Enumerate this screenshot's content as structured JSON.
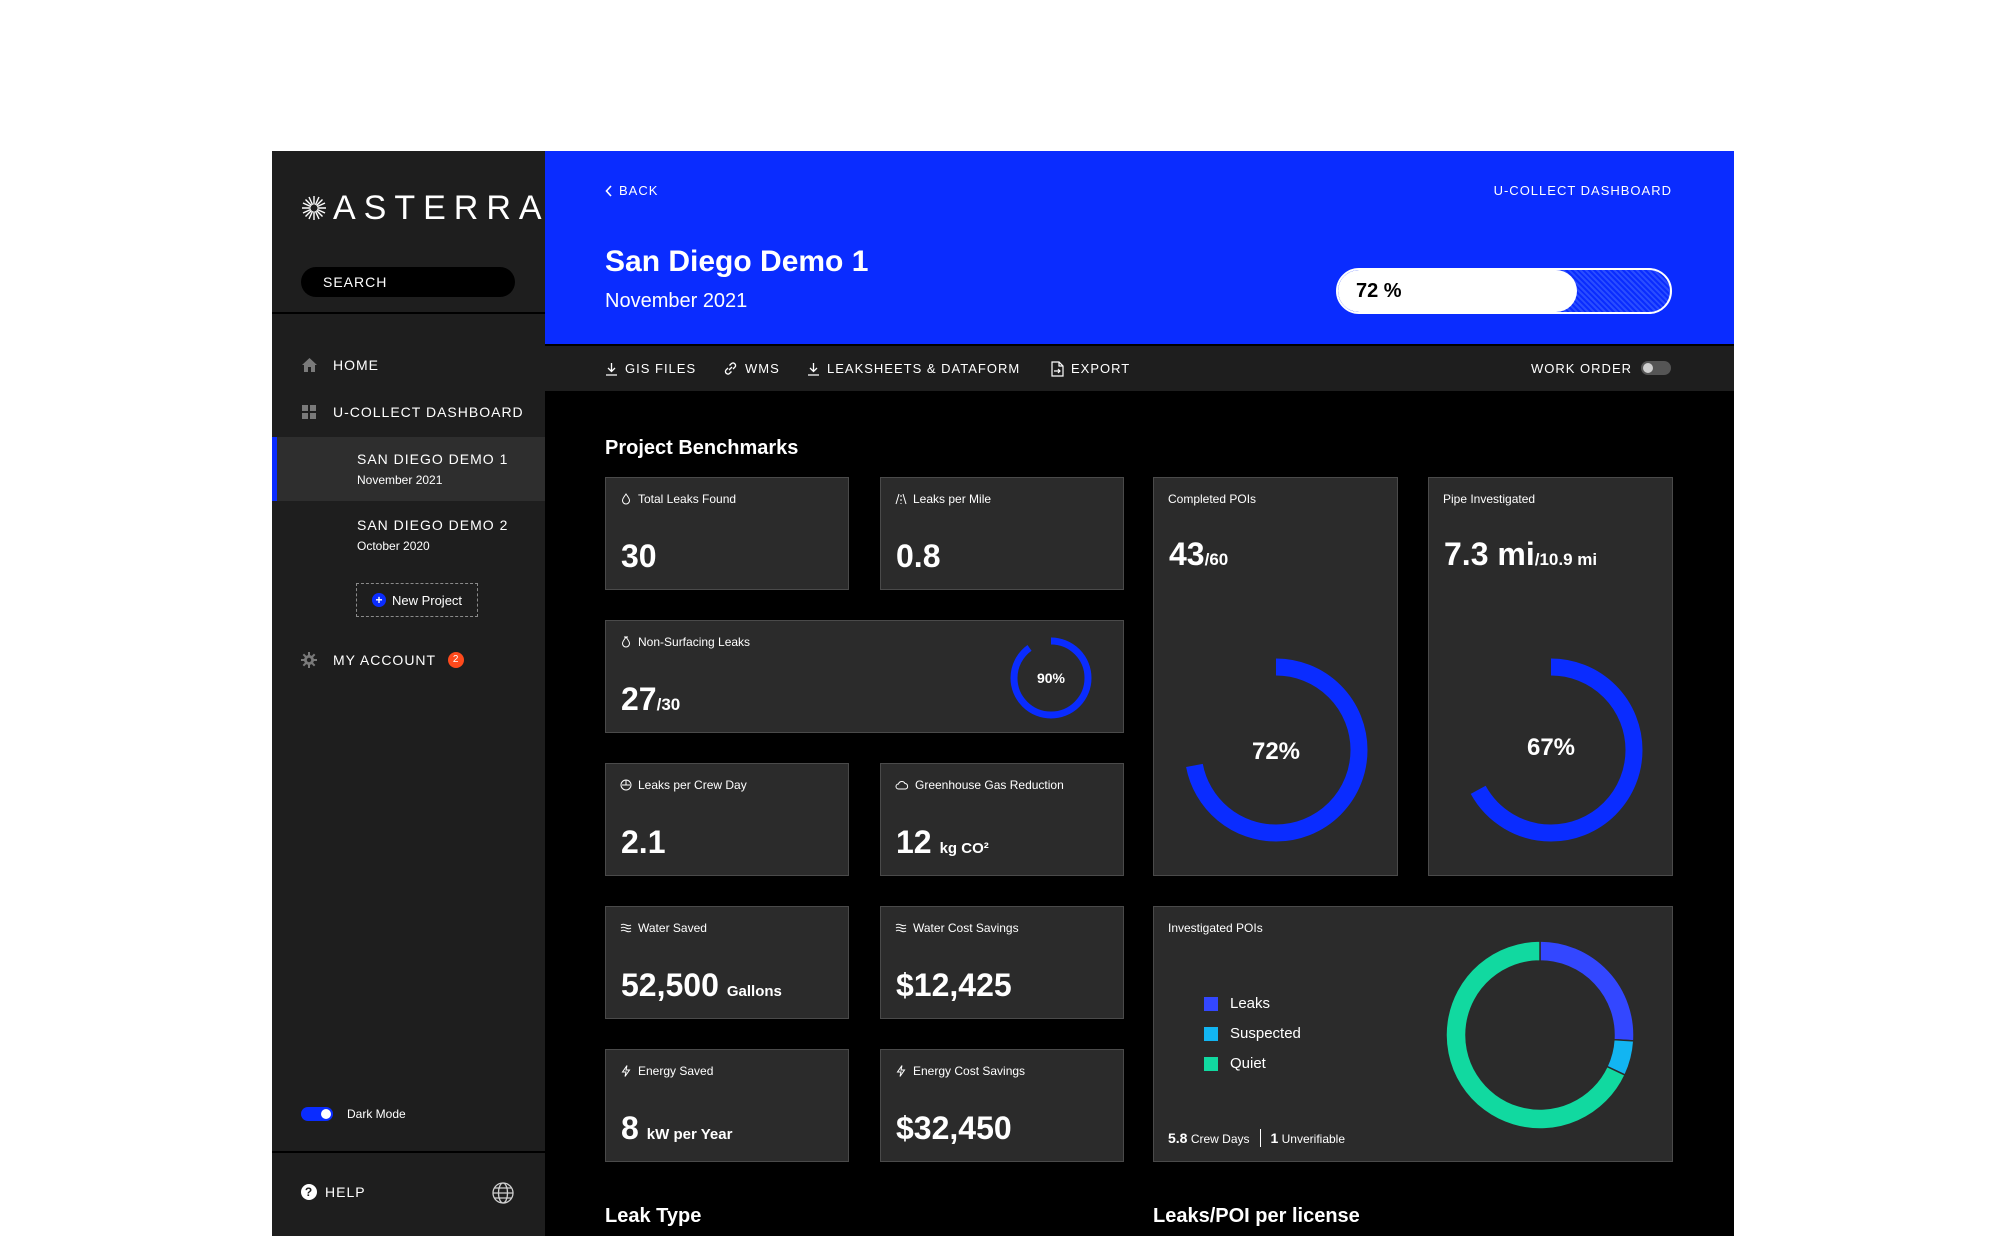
{
  "sidebar": {
    "logo": "ASTERRA",
    "search_label": "SEARCH",
    "home_label": "HOME",
    "dashboard_label": "U-COLLECT DASHBOARD",
    "projects": [
      {
        "name": "SAN DIEGO DEMO 1",
        "date": "November 2021"
      },
      {
        "name": "SAN DIEGO DEMO 2",
        "date": "October 2020"
      }
    ],
    "new_project_label": "New Project",
    "account_label": "MY ACCOUNT",
    "account_badge": "2",
    "dark_mode_label": "Dark Mode",
    "help_label": "HELP"
  },
  "header": {
    "back_label": "BACK",
    "breadcrumb": "U-COLLECT DASHBOARD",
    "title": "San Diego Demo 1",
    "subtitle": "November 2021",
    "progress_label": "72 %",
    "progress_value": 72
  },
  "toolbar": {
    "gis_files": "GIS FILES",
    "wms": "WMS",
    "leaksheets": "LEAKSHEETS & DATAFORM",
    "export": "EXPORT",
    "work_order": "WORK ORDER"
  },
  "benchmarks": {
    "title": "Project Benchmarks",
    "total_leaks": {
      "label": "Total Leaks Found",
      "value": "30"
    },
    "leaks_per_mile": {
      "label": "Leaks per Mile",
      "value": "0.8"
    },
    "non_surfacing": {
      "label": "Non-Surfacing Leaks",
      "value": "27",
      "of": "/30",
      "percent_label": "90%",
      "percent": 90
    },
    "leaks_per_crew_day": {
      "label": "Leaks per Crew Day",
      "value": "2.1"
    },
    "ghg_reduction": {
      "label": "Greenhouse Gas Reduction",
      "value": "12",
      "unit": "kg CO²"
    },
    "water_saved": {
      "label": "Water Saved",
      "value": "52,500",
      "unit": "Gallons"
    },
    "water_cost": {
      "label": "Water Cost Savings",
      "value": "$12,425"
    },
    "energy_saved": {
      "label": "Energy Saved",
      "value": "8",
      "unit": "kW per Year"
    },
    "energy_cost": {
      "label": "Energy Cost Savings",
      "value": "$32,450"
    },
    "completed_pois": {
      "label": "Completed POIs",
      "value": "43",
      "of": "/60",
      "percent_label": "72%",
      "percent": 72
    },
    "pipe_investigated": {
      "label": "Pipe Investigated",
      "value": "7.3 mi",
      "of": "/10.9 mi",
      "percent_label": "67%",
      "percent": 67
    },
    "investigated_pois": {
      "label": "Investigated POIs",
      "legend": [
        {
          "name": "Leaks",
          "color": "#3347ff"
        },
        {
          "name": "Suspected",
          "color": "#12b5f2"
        },
        {
          "name": "Quiet",
          "color": "#11d9a0"
        }
      ],
      "crew_days_value": "5.8",
      "crew_days_label": "Crew Days",
      "unverifiable_value": "1",
      "unverifiable_label": "Unverifiable"
    }
  },
  "chart_data": {
    "type": "pie",
    "title": "Investigated POIs",
    "categories": [
      "Leaks",
      "Suspected",
      "Quiet"
    ],
    "values": [
      26,
      6,
      68
    ]
  },
  "sections": {
    "leak_type": "Leak Type",
    "leaks_per_license": "Leaks/POI per license"
  },
  "colors": {
    "accent": "#0a2cff",
    "card": "#2b2b2b",
    "badge": "#ff4a1c"
  }
}
